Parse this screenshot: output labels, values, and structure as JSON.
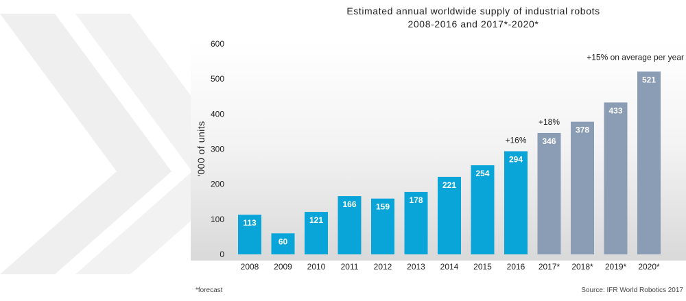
{
  "chart_data": {
    "type": "bar",
    "title_line1": "Estimated annual worldwide supply of industrial robots",
    "title_line2": "2008-2016 and 2017*-2020*",
    "ylabel": "'000 of units",
    "xlabel": "",
    "ylim": [
      0,
      600
    ],
    "yticks": [
      0,
      100,
      200,
      300,
      400,
      500,
      600
    ],
    "categories": [
      "2008",
      "2009",
      "2010",
      "2011",
      "2012",
      "2013",
      "2014",
      "2015",
      "2016",
      "2017*",
      "2018*",
      "2019*",
      "2020*"
    ],
    "values": [
      113,
      60,
      121,
      166,
      159,
      178,
      221,
      254,
      294,
      346,
      378,
      433,
      521
    ],
    "forecast": [
      false,
      false,
      false,
      false,
      false,
      false,
      false,
      false,
      false,
      true,
      true,
      true,
      true
    ],
    "annotations": [
      {
        "category": "2016",
        "text": "+16%"
      },
      {
        "category": "2017*",
        "text": "+18%"
      },
      {
        "category": "2020*",
        "text": "+15% on average per year"
      }
    ],
    "colors": {
      "actual": "#0aa5d8",
      "forecast": "#8b9cb5",
      "background_chevron": "#ececec"
    },
    "grid": false,
    "legend": "none"
  },
  "notes": {
    "forecast": "*forecast",
    "source": "Source: IFR World Robotics 2017"
  }
}
